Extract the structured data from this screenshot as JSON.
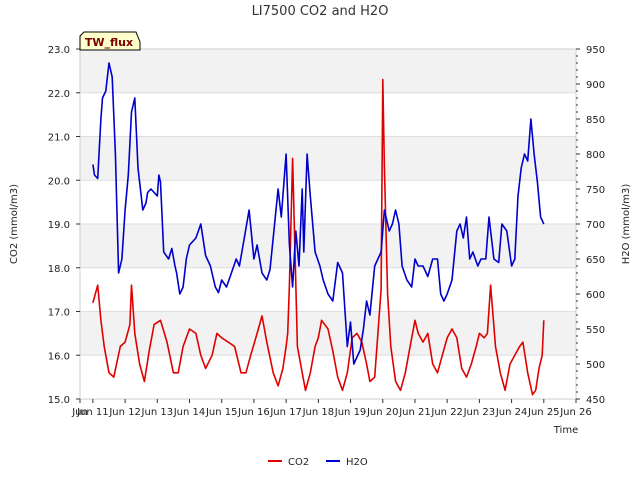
{
  "chart_data": {
    "type": "line",
    "title": "LI7500 CO2 and H2O",
    "site_badge": "TW_flux",
    "xlabel": "Time",
    "ylabel_left": "CO2 (mmol/m3)",
    "ylabel_right": "H2O (mmol/m3)",
    "x_unit": "day of June",
    "xlim": [
      10.6,
      26
    ],
    "ylim_left": [
      15.0,
      23.0
    ],
    "ylim_right": [
      450,
      950
    ],
    "bands_left": [
      [
        16.0,
        17.0
      ],
      [
        18.0,
        19.0
      ],
      [
        20.0,
        21.0
      ],
      [
        22.0,
        23.0
      ]
    ],
    "grid": true,
    "legend_position": "bottom-center",
    "x_tick_labels": [
      "Jun 11",
      "Jun 12",
      "Jun 13",
      "Jun 14",
      "Jun 15",
      "Jun 16",
      "Jun 17",
      "Jun 18",
      "Jun 19",
      "Jun 20",
      "Jun 21",
      "Jun 22",
      "Jun 23",
      "Jun 24",
      "Jun 25",
      "Jun 26"
    ],
    "x_tick_values": [
      11,
      12,
      13,
      14,
      15,
      16,
      17,
      18,
      19,
      20,
      21,
      22,
      23,
      24,
      25,
      26
    ],
    "x_first_tick_label": "Jun",
    "x_first_tick_value": 10.6,
    "y_left_ticks": [
      "15.0",
      "16.0",
      "17.0",
      "18.0",
      "19.0",
      "20.0",
      "21.0",
      "22.0",
      "23.0"
    ],
    "y_right_ticks": [
      "450",
      "500",
      "550",
      "600",
      "650",
      "700",
      "750",
      "800",
      "850",
      "900",
      "950"
    ],
    "series": [
      {
        "name": "CO2",
        "axis": "left",
        "color": "#e00000",
        "x": [
          11.0,
          11.15,
          11.25,
          11.35,
          11.5,
          11.65,
          11.85,
          12.0,
          12.15,
          12.2,
          12.3,
          12.45,
          12.6,
          12.75,
          12.9,
          13.1,
          13.3,
          13.5,
          13.65,
          13.8,
          14.0,
          14.2,
          14.35,
          14.5,
          14.7,
          14.85,
          15.0,
          15.2,
          15.4,
          15.6,
          15.75,
          15.9,
          16.1,
          16.25,
          16.4,
          16.6,
          16.75,
          16.9,
          17.0,
          17.05,
          17.1,
          17.2,
          17.35,
          17.5,
          17.6,
          17.75,
          17.9,
          18.0,
          18.1,
          18.3,
          18.45,
          18.6,
          18.75,
          18.9,
          19.05,
          19.2,
          19.35,
          19.5,
          19.6,
          19.75,
          19.85,
          19.95,
          20.0,
          20.05,
          20.15,
          20.25,
          20.4,
          20.55,
          20.7,
          20.85,
          21.0,
          21.1,
          21.25,
          21.4,
          21.55,
          21.7,
          21.85,
          22.0,
          22.15,
          22.3,
          22.45,
          22.6,
          22.75,
          22.9,
          23.0,
          23.15,
          23.25,
          23.35,
          23.5,
          23.65,
          23.8,
          23.95,
          24.1,
          24.25,
          24.35,
          24.5,
          24.65,
          24.75,
          24.85,
          24.95,
          25.0
        ],
        "values": [
          17.2,
          17.6,
          16.8,
          16.2,
          15.6,
          15.5,
          16.2,
          16.3,
          16.7,
          17.6,
          16.5,
          15.8,
          15.4,
          16.1,
          16.7,
          16.8,
          16.3,
          15.6,
          15.6,
          16.2,
          16.6,
          16.5,
          16.0,
          15.7,
          16.0,
          16.5,
          16.4,
          16.3,
          16.2,
          15.6,
          15.6,
          16.0,
          16.5,
          16.9,
          16.3,
          15.6,
          15.3,
          15.7,
          16.2,
          16.5,
          17.6,
          20.5,
          16.2,
          15.6,
          15.2,
          15.6,
          16.2,
          16.4,
          16.8,
          16.6,
          16.1,
          15.5,
          15.2,
          15.6,
          16.4,
          16.5,
          16.3,
          15.8,
          15.4,
          15.5,
          16.5,
          17.5,
          22.3,
          20.3,
          17.4,
          16.2,
          15.4,
          15.2,
          15.6,
          16.2,
          16.8,
          16.5,
          16.3,
          16.5,
          15.8,
          15.6,
          16.0,
          16.4,
          16.6,
          16.4,
          15.7,
          15.5,
          15.8,
          16.2,
          16.5,
          16.4,
          16.5,
          17.6,
          16.2,
          15.6,
          15.2,
          15.8,
          16.0,
          16.2,
          16.3,
          15.6,
          15.1,
          15.2,
          15.7,
          16.0,
          16.8
        ]
      },
      {
        "name": "H2O",
        "axis": "right",
        "color": "#0000cc",
        "x": [
          11.0,
          11.05,
          11.15,
          11.25,
          11.3,
          11.4,
          11.5,
          11.6,
          11.7,
          11.8,
          11.9,
          12.0,
          12.1,
          12.2,
          12.3,
          12.4,
          12.45,
          12.55,
          12.65,
          12.7,
          12.8,
          12.9,
          13.0,
          13.05,
          13.1,
          13.2,
          13.35,
          13.45,
          13.55,
          13.6,
          13.7,
          13.8,
          13.9,
          14.0,
          14.2,
          14.35,
          14.5,
          14.65,
          14.8,
          14.9,
          15.0,
          15.15,
          15.3,
          15.45,
          15.55,
          15.7,
          15.85,
          16.0,
          16.1,
          16.25,
          16.4,
          16.5,
          16.6,
          16.75,
          16.85,
          17.0,
          17.1,
          17.2,
          17.3,
          17.4,
          17.5,
          17.55,
          17.65,
          17.75,
          17.9,
          18.05,
          18.15,
          18.3,
          18.45,
          18.6,
          18.75,
          18.9,
          19.0,
          19.1,
          19.2,
          19.3,
          19.4,
          19.5,
          19.6,
          19.75,
          19.85,
          19.95,
          20.05,
          20.2,
          20.3,
          20.4,
          20.5,
          20.6,
          20.75,
          20.9,
          21.0,
          21.1,
          21.25,
          21.4,
          21.55,
          21.7,
          21.8,
          21.9,
          22.0,
          22.15,
          22.3,
          22.4,
          22.5,
          22.6,
          22.7,
          22.8,
          22.95,
          23.05,
          23.2,
          23.3,
          23.45,
          23.6,
          23.7,
          23.85,
          24.0,
          24.1,
          24.2,
          24.3,
          24.4,
          24.5,
          24.6,
          24.7,
          24.8,
          24.9,
          25.0
        ],
        "values": [
          785,
          770,
          765,
          850,
          880,
          890,
          930,
          910,
          800,
          630,
          650,
          720,
          770,
          860,
          880,
          780,
          760,
          720,
          730,
          745,
          750,
          745,
          740,
          770,
          760,
          660,
          650,
          665,
          640,
          630,
          600,
          610,
          650,
          670,
          680,
          700,
          655,
          640,
          610,
          602,
          620,
          610,
          630,
          650,
          640,
          680,
          720,
          650,
          670,
          630,
          620,
          635,
          680,
          750,
          710,
          800,
          670,
          610,
          690,
          640,
          750,
          660,
          800,
          740,
          660,
          640,
          620,
          600,
          590,
          645,
          630,
          525,
          560,
          500,
          510,
          520,
          550,
          590,
          570,
          640,
          650,
          660,
          720,
          690,
          700,
          720,
          700,
          640,
          620,
          610,
          650,
          640,
          640,
          625,
          650,
          650,
          600,
          590,
          600,
          620,
          690,
          700,
          680,
          710,
          650,
          660,
          640,
          650,
          650,
          710,
          650,
          645,
          700,
          690,
          640,
          650,
          740,
          780,
          800,
          790,
          850,
          800,
          760,
          710,
          700
        ]
      }
    ]
  }
}
